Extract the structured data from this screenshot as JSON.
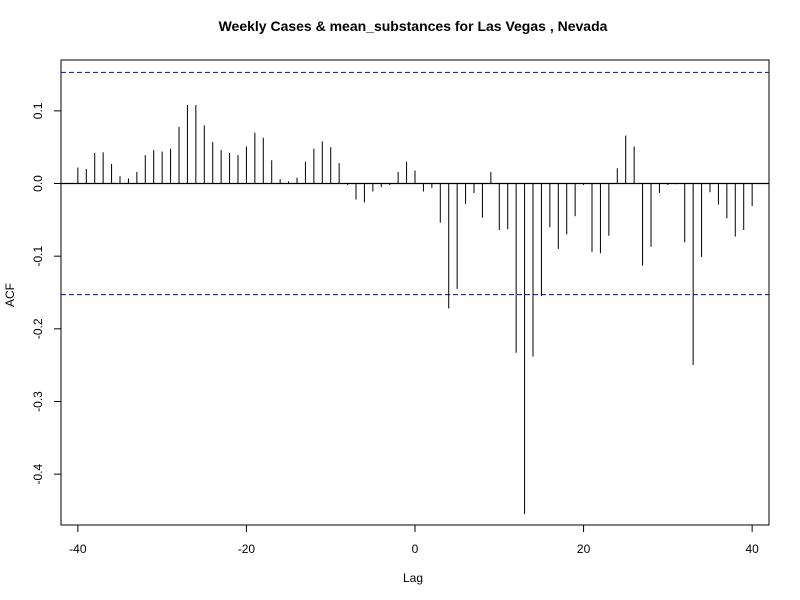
{
  "chart_data": {
    "type": "bar",
    "title": "Weekly Cases & mean_substances for Las Vegas , Nevada",
    "xlabel": "Lag",
    "ylabel": "ACF",
    "xlim": [
      -42,
      42
    ],
    "ylim": [
      -0.47,
      0.17
    ],
    "x_ticks": [
      -40,
      -20,
      0,
      20,
      40
    ],
    "y_ticks": [
      0.1,
      0.0,
      -0.1,
      -0.2,
      -0.3,
      -0.4
    ],
    "x_tick_labels": [
      "-40",
      "-20",
      "0",
      "20",
      "40"
    ],
    "y_tick_labels": [
      "0.1",
      "0.0",
      "-0.1",
      "-0.2",
      "-0.3",
      "-0.4"
    ],
    "confidence_bounds": [
      0.153,
      -0.153
    ],
    "confidence_color": "#0000cc",
    "lags": [
      -40,
      -39,
      -38,
      -37,
      -36,
      -35,
      -34,
      -33,
      -32,
      -31,
      -30,
      -29,
      -28,
      -27,
      -26,
      -25,
      -24,
      -23,
      -22,
      -21,
      -20,
      -19,
      -18,
      -17,
      -16,
      -15,
      -14,
      -13,
      -12,
      -11,
      -10,
      -9,
      -8,
      -7,
      -6,
      -5,
      -4,
      -3,
      -2,
      -1,
      0,
      1,
      2,
      3,
      4,
      5,
      6,
      7,
      8,
      9,
      10,
      11,
      12,
      13,
      14,
      15,
      16,
      17,
      18,
      19,
      20,
      21,
      22,
      23,
      24,
      25,
      26,
      27,
      28,
      29,
      30,
      31,
      32,
      33,
      34,
      35,
      36,
      37,
      38,
      39,
      40
    ],
    "values": [
      0.022,
      0.02,
      0.042,
      0.043,
      0.027,
      0.01,
      0.007,
      0.016,
      0.039,
      0.046,
      0.044,
      0.048,
      0.078,
      0.108,
      0.108,
      0.08,
      0.057,
      0.046,
      0.042,
      0.039,
      0.051,
      0.07,
      0.063,
      0.032,
      0.006,
      0.003,
      0.008,
      0.03,
      0.048,
      0.058,
      0.05,
      0.028,
      -0.002,
      -0.022,
      -0.026,
      -0.011,
      -0.005,
      -0.002,
      0.016,
      0.03,
      0.018,
      -0.011,
      -0.006,
      -0.054,
      -0.172,
      -0.145,
      -0.028,
      -0.013,
      -0.047,
      0.016,
      -0.064,
      -0.063,
      -0.233,
      -0.455,
      -0.238,
      -0.155,
      -0.06,
      -0.09,
      -0.07,
      -0.045,
      -0.002,
      -0.094,
      -0.096,
      -0.072,
      0.021,
      0.066,
      0.051,
      -0.113,
      -0.087,
      -0.013,
      -0.002,
      -0.001,
      -0.081,
      -0.25,
      -0.101,
      -0.012,
      -0.029,
      -0.048,
      -0.073,
      -0.064,
      -0.031
    ]
  }
}
